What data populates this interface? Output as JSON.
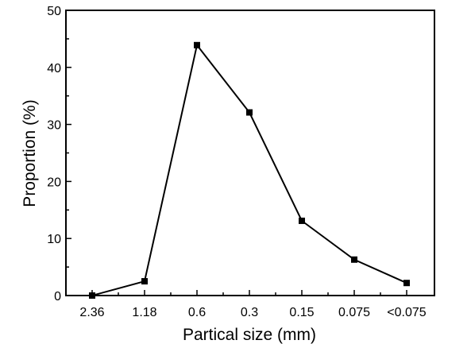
{
  "chart_data": {
    "type": "line",
    "title": "",
    "xlabel": "Partical size (mm)",
    "ylabel": "Proportion (%)",
    "categories": [
      "2.36",
      "1.18",
      "0.6",
      "0.3",
      "0.15",
      "0.075",
      "<0.075"
    ],
    "series": [
      {
        "values": [
          0.0,
          2.5,
          43.9,
          32.1,
          13.1,
          6.3,
          2.2
        ]
      }
    ],
    "ylim": [
      0,
      50
    ],
    "yticks": [
      "0",
      "10",
      "20",
      "30",
      "40",
      "50"
    ],
    "grid": false,
    "marker": "square",
    "line_color": "#000000"
  }
}
